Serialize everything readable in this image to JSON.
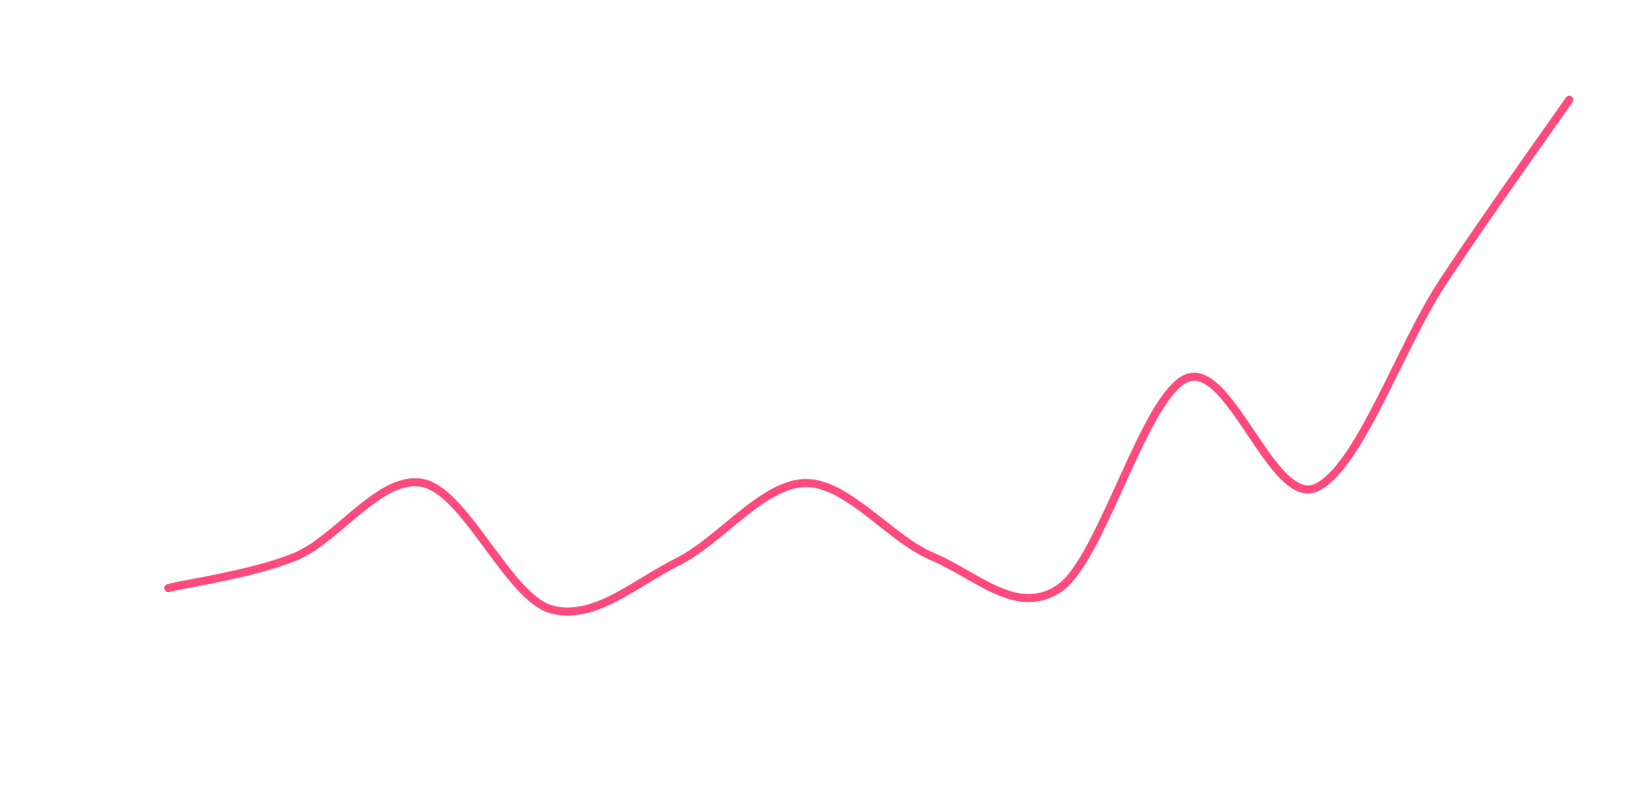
{
  "chart_data": {
    "type": "line",
    "categories": [
      null,
      null,
      null,
      null,
      null,
      null,
      null,
      null,
      null,
      null,
      null,
      null
    ],
    "series": [
      {
        "color": "#ff4a7d",
        "values": [
          28,
          34,
          48,
          24,
          33,
          48,
          34,
          28,
          68,
          47,
          86,
          121
        ]
      }
    ],
    "ylim": [
      0,
      140
    ],
    "smooth": true
  }
}
